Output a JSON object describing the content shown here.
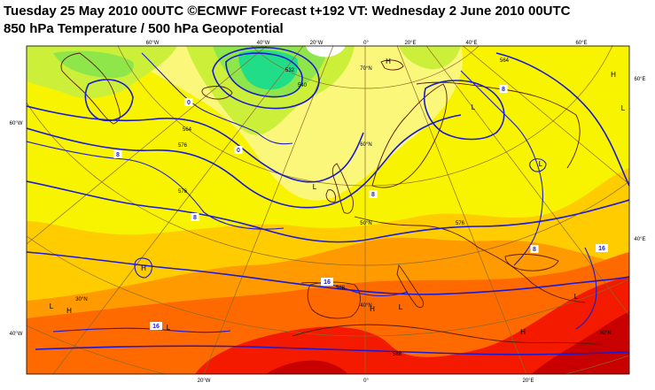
{
  "header": {
    "line1": "Tuesday 25 May 2010 00UTC ©ECMWF Forecast t+192 VT: Wednesday 2 June 2010 00UTC",
    "line2": "850 hPa Temperature / 500 hPa Geopotential"
  },
  "map": {
    "top_lon_labels": [
      "60°W",
      "40°W",
      "20°W",
      "0°",
      "20°E",
      "40°E",
      "60°E"
    ],
    "bottom_lon_labels": [
      "20°W",
      "0°",
      "20°E"
    ],
    "left_lat_labels": [
      "60°W",
      "40°W"
    ],
    "right_lat_labels": [
      "60°E",
      "40°E"
    ],
    "inner_lat_labels": [
      "70°N",
      "60°N",
      "50°N",
      "40°N",
      "30°N",
      "30°N"
    ],
    "pressure_centers": [
      "H",
      "H",
      "H",
      "L",
      "L",
      "L",
      "L",
      "H",
      "L",
      "L",
      "L",
      "H",
      "L",
      "H"
    ],
    "temp_labels": [
      "0",
      "0",
      "8",
      "8",
      "8",
      "8",
      "8",
      "16",
      "16",
      "16"
    ],
    "geopotential_labels": [
      "532",
      "540",
      "564",
      "576",
      "576",
      "588",
      "576",
      "564",
      "588"
    ],
    "colors": {
      "t_cold": "#22dd88",
      "t_cool": "#8ee64a",
      "t_mild": "#ccf03a",
      "t_pale": "#fbf77a",
      "t_yellow": "#f8f400",
      "t_amber": "#ffcc00",
      "t_orange": "#ff9a00",
      "t_deep": "#ff6a00",
      "t_red": "#f41a00",
      "t_dark": "#c80000",
      "sea_ice": "#ffffff",
      "contour": "#1a1ad0",
      "graticule": "#8b6a2a",
      "coast": "#5a1a00"
    }
  }
}
